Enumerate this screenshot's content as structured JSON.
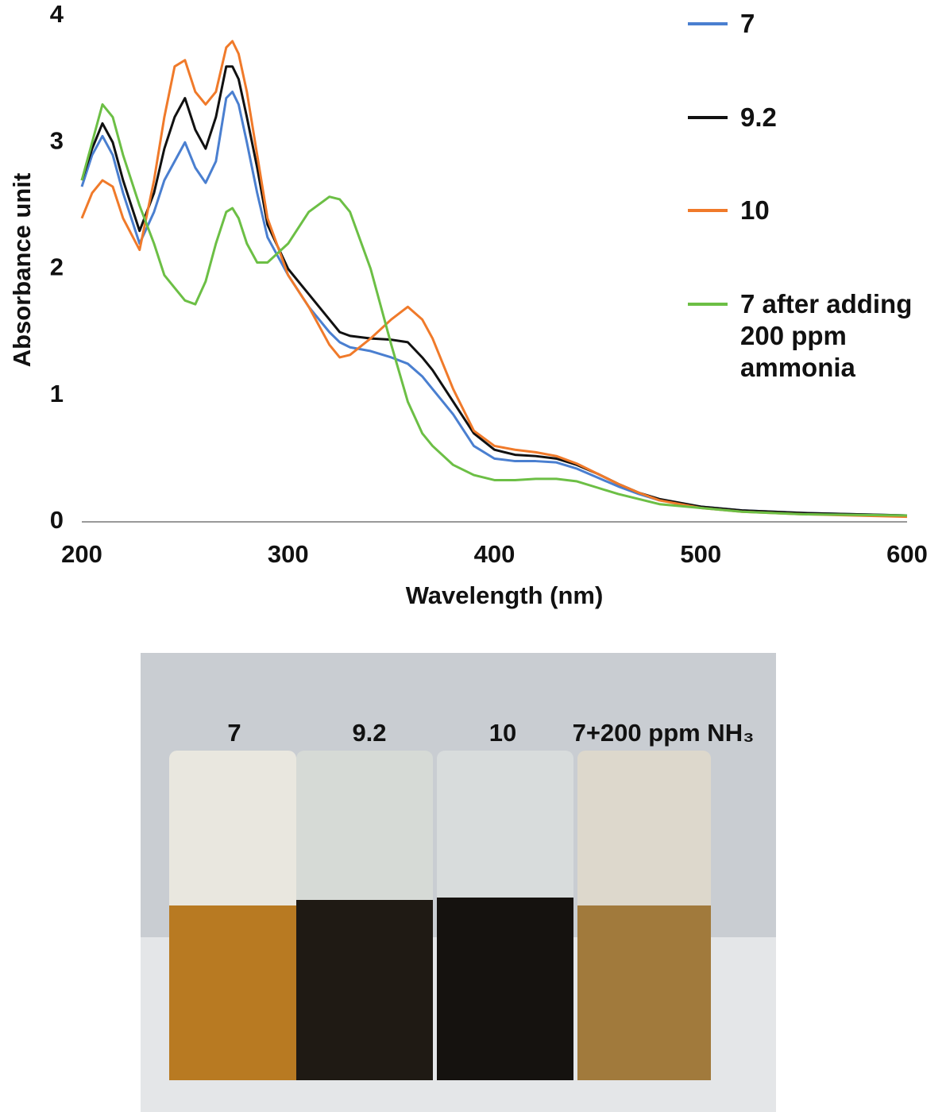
{
  "chart_data": {
    "type": "line",
    "x_label": "Wavelength (nm)",
    "y_label": "Absorbance unit",
    "x": [
      200,
      205,
      210,
      215,
      220,
      228,
      235,
      240,
      245,
      250,
      255,
      260,
      265,
      270,
      273,
      276,
      280,
      285,
      290,
      300,
      310,
      320,
      325,
      330,
      340,
      350,
      358,
      365,
      370,
      380,
      390,
      400,
      410,
      420,
      430,
      440,
      450,
      460,
      470,
      480,
      500,
      520,
      550,
      600
    ],
    "series": [
      {
        "name": "7",
        "color": "#4a7fd0",
        "values": [
          2.65,
          2.9,
          3.05,
          2.9,
          2.6,
          2.2,
          2.45,
          2.7,
          2.85,
          3.0,
          2.8,
          2.68,
          2.85,
          3.35,
          3.4,
          3.3,
          3.0,
          2.6,
          2.25,
          1.95,
          1.7,
          1.5,
          1.42,
          1.38,
          1.35,
          1.3,
          1.25,
          1.15,
          1.05,
          0.85,
          0.6,
          0.5,
          0.48,
          0.48,
          0.47,
          0.42,
          0.35,
          0.28,
          0.22,
          0.17,
          0.12,
          0.09,
          0.07,
          0.05
        ]
      },
      {
        "name": "9.2",
        "color": "#111111",
        "values": [
          2.7,
          2.95,
          3.15,
          3.0,
          2.7,
          2.3,
          2.6,
          2.95,
          3.2,
          3.35,
          3.1,
          2.95,
          3.2,
          3.6,
          3.6,
          3.5,
          3.2,
          2.8,
          2.35,
          2.0,
          1.8,
          1.6,
          1.5,
          1.47,
          1.45,
          1.44,
          1.42,
          1.3,
          1.2,
          0.95,
          0.7,
          0.57,
          0.53,
          0.52,
          0.5,
          0.45,
          0.38,
          0.3,
          0.23,
          0.18,
          0.12,
          0.09,
          0.07,
          0.05
        ]
      },
      {
        "name": "10",
        "color": "#f07a2a",
        "values": [
          2.4,
          2.6,
          2.7,
          2.65,
          2.4,
          2.15,
          2.7,
          3.2,
          3.6,
          3.65,
          3.4,
          3.3,
          3.4,
          3.75,
          3.8,
          3.7,
          3.4,
          2.9,
          2.4,
          1.95,
          1.7,
          1.4,
          1.3,
          1.32,
          1.45,
          1.6,
          1.7,
          1.6,
          1.45,
          1.05,
          0.72,
          0.6,
          0.57,
          0.55,
          0.52,
          0.46,
          0.38,
          0.3,
          0.23,
          0.17,
          0.11,
          0.08,
          0.06,
          0.04
        ]
      },
      {
        "name": "7 after adding 200 ppm ammonia",
        "color": "#6cbf45",
        "values": [
          2.7,
          3.0,
          3.3,
          3.2,
          2.9,
          2.5,
          2.2,
          1.95,
          1.85,
          1.75,
          1.72,
          1.9,
          2.2,
          2.45,
          2.48,
          2.4,
          2.2,
          2.05,
          2.05,
          2.2,
          2.45,
          2.57,
          2.55,
          2.45,
          2.0,
          1.4,
          0.95,
          0.7,
          0.6,
          0.45,
          0.37,
          0.33,
          0.33,
          0.34,
          0.34,
          0.32,
          0.27,
          0.22,
          0.18,
          0.14,
          0.11,
          0.08,
          0.06,
          0.05
        ]
      }
    ],
    "xlim": [
      200,
      600
    ],
    "xticks": [
      200,
      300,
      400,
      500,
      600
    ],
    "ylim": [
      0,
      4
    ],
    "yticks": [
      0,
      1,
      2,
      3,
      4
    ],
    "grid": false
  },
  "photo": {
    "labels": [
      "7",
      "9.2",
      "10",
      "7+200 ppm NH₃"
    ]
  }
}
